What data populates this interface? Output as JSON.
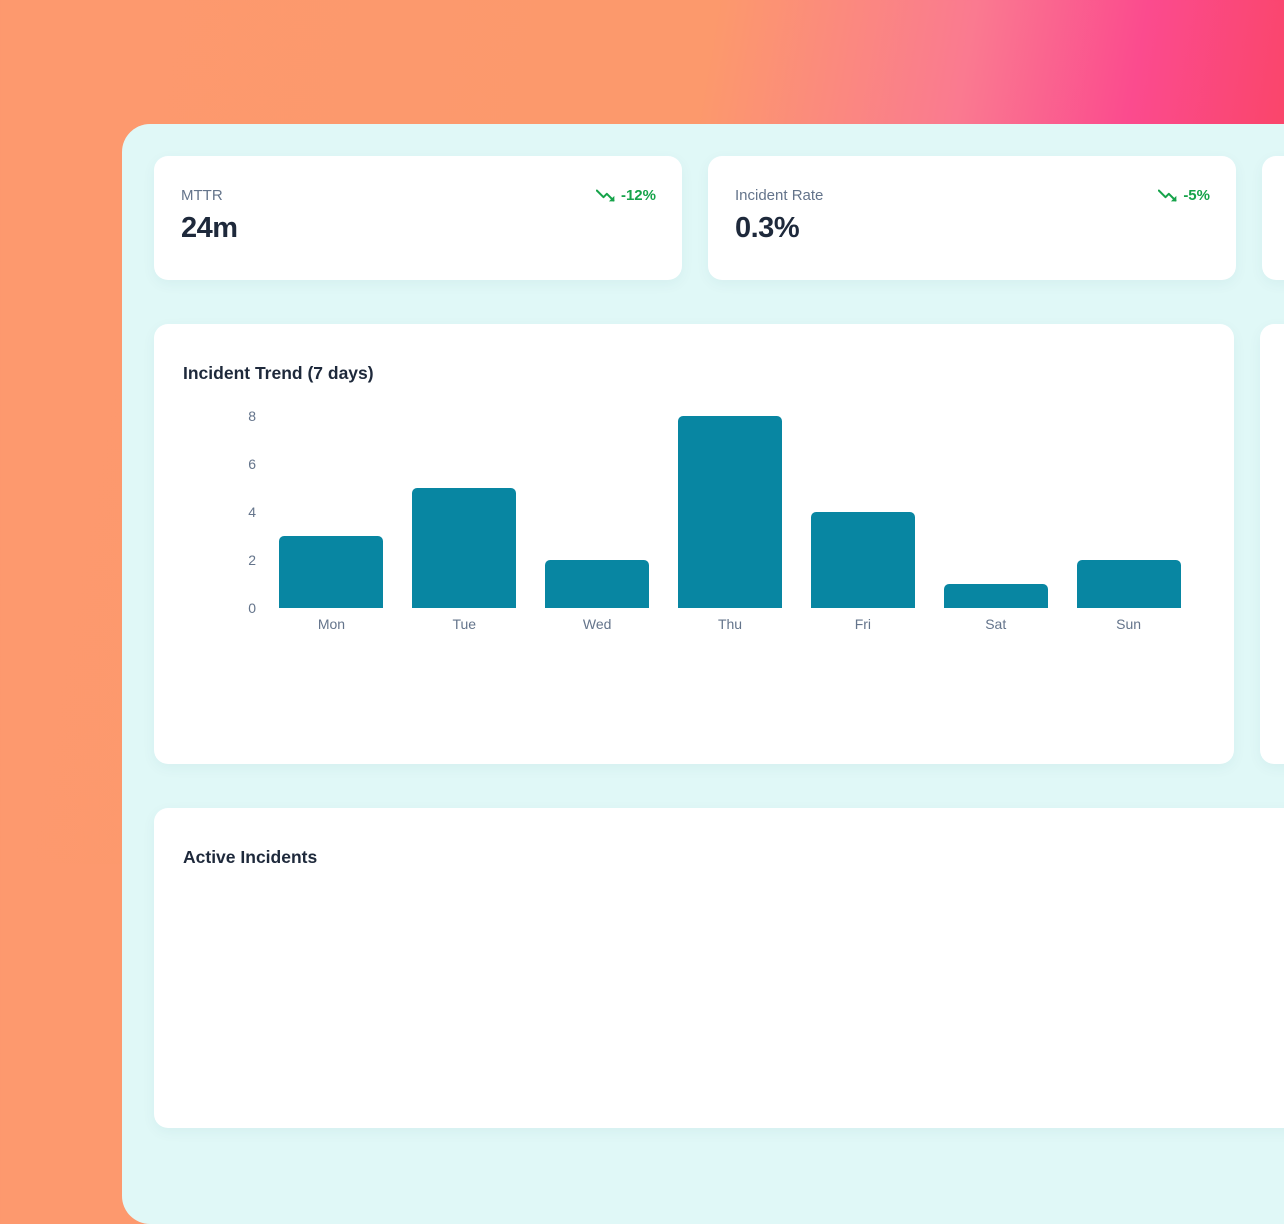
{
  "stats": [
    {
      "label": "MTTR",
      "value": "24m",
      "trend": "-12%",
      "trend_direction": "down"
    },
    {
      "label": "Incident Rate",
      "value": "0.3%",
      "trend": "-5%",
      "trend_direction": "down"
    }
  ],
  "chart_card": {
    "title": "Incident Trend (7 days)"
  },
  "incidents_card": {
    "title": "Active Incidents"
  },
  "chart_data": {
    "type": "bar",
    "title": "Incident Trend (7 days)",
    "categories": [
      "Mon",
      "Tue",
      "Wed",
      "Thu",
      "Fri",
      "Sat",
      "Sun"
    ],
    "values": [
      3,
      5,
      2,
      8,
      4,
      1,
      2
    ],
    "xlabel": "",
    "ylabel": "",
    "ylim": [
      0,
      8
    ],
    "yticks": [
      0,
      2,
      4,
      6,
      8
    ],
    "grid": false,
    "legend": false,
    "bar_color": "#0886a2"
  },
  "colors": {
    "trend_green": "#16a34a",
    "panel_bg": "#e0f8f7",
    "bar_teal": "#0886a2",
    "gradient_left": "#fd996e",
    "gradient_right": "#fb4252"
  }
}
